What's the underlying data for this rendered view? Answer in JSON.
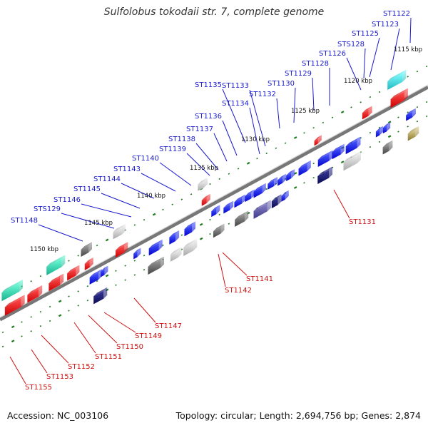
{
  "title": "Sulfolobus tokodaii str. 7, complete genome",
  "footer": {
    "accession": "Accession: NC_003106",
    "summary": "Topology: circular; Length: 2,694,756 bp; Genes: 2,874"
  },
  "colors": {
    "forward_label": "#1a1acc",
    "reverse_label": "#cc1111",
    "backbone": "#777777",
    "tick": "#1f7a1f"
  },
  "kbp_markers": [
    "1115 kbp",
    "1120 kbp",
    "1125 kbp",
    "1130 kbp",
    "1135 kbp",
    "1140 kbp",
    "1145 kbp",
    "1150 kbp"
  ],
  "forward_genes": [
    "ST1122",
    "ST1123",
    "ST1125",
    "STS128",
    "ST1126",
    "ST1128",
    "ST1129",
    "ST1130",
    "ST1132",
    "ST1133",
    "ST1134",
    "ST1135",
    "ST1136",
    "ST1137",
    "ST1138",
    "ST1139",
    "ST1140",
    "ST1143",
    "ST1144",
    "ST1145",
    "ST1146",
    "STS129",
    "ST1148"
  ],
  "reverse_genes": [
    "ST1131",
    "ST1141",
    "ST1142",
    "ST1147",
    "ST1149",
    "ST1150",
    "ST1151",
    "ST1152",
    "ST1153",
    "ST1155"
  ]
}
